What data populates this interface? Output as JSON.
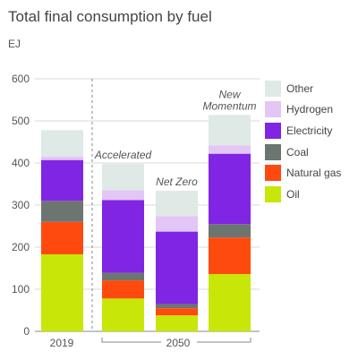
{
  "title": "Total final consumption by fuel",
  "unit_label": "EJ",
  "colors": {
    "Oil": "#c8e608",
    "Natural gas": "#ff4a0f",
    "Coal": "#6d7570",
    "Electricity": "#7f25e3",
    "Hydrogen": "#e3c6f5",
    "Other": "#dfe9e6"
  },
  "legend": [
    "Other",
    "Hydrogen",
    "Electricity",
    "Coal",
    "Natural gas",
    "Oil"
  ],
  "chart_data": {
    "type": "bar",
    "stacked": true,
    "ylim": [
      0,
      600
    ],
    "yticks": [
      0,
      100,
      200,
      300,
      400,
      500,
      600
    ],
    "ylabel": "EJ",
    "categories": [
      "2019",
      "Accelerated",
      "Net Zero",
      "New Momentum"
    ],
    "category_labels": [
      "",
      "Accelerated",
      "Net Zero",
      "New\nMomentum"
    ],
    "x_groups": [
      {
        "label": "2019",
        "categories": [
          "2019"
        ]
      },
      {
        "label": "2050",
        "categories": [
          "Accelerated",
          "Net Zero",
          "New Momentum"
        ]
      }
    ],
    "series": [
      {
        "name": "Oil",
        "values": [
          183,
          78,
          38,
          136
        ]
      },
      {
        "name": "Natural gas",
        "values": [
          77,
          43,
          17,
          87
        ]
      },
      {
        "name": "Coal",
        "values": [
          50,
          18,
          10,
          32
        ]
      },
      {
        "name": "Electricity",
        "values": [
          97,
          173,
          172,
          167
        ]
      },
      {
        "name": "Hydrogen",
        "values": [
          8,
          23,
          37,
          20
        ]
      },
      {
        "name": "Other",
        "values": [
          63,
          63,
          60,
          72
        ]
      }
    ],
    "grid": true,
    "legend_position": "right"
  }
}
